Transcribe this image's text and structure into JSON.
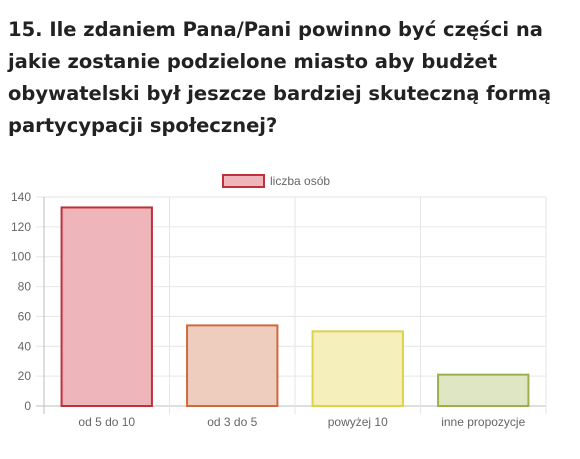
{
  "question": {
    "title": "15. Ile zdaniem Pana/Pani powinno być części na jakie zostanie podzielone miasto aby budżet obywatelski był jeszcze bardziej skuteczną formą partycypacji społecznej?"
  },
  "chart_data": {
    "type": "bar",
    "categories": [
      "od 5 do 10",
      "od 3 do 5",
      "powyżej 10",
      "inne propozycje"
    ],
    "series": [
      {
        "name": "liczba osób",
        "values": [
          133,
          54,
          50,
          21
        ],
        "fill_colors": [
          "#eeb5bb",
          "#eecdbf",
          "#f5f0bb",
          "#dfe6c3"
        ],
        "border_colors": [
          "#c0303a",
          "#cd6a3a",
          "#ddd24a",
          "#9cb04a"
        ]
      }
    ],
    "legend": {
      "label": "liczba osób",
      "fill": "#eeb5bb",
      "border": "#c0303a",
      "position": "top"
    },
    "ylim": [
      0,
      140
    ],
    "yticks": [
      0,
      20,
      40,
      60,
      80,
      100,
      120,
      140
    ],
    "grid": true,
    "xlabel": "",
    "ylabel": ""
  }
}
